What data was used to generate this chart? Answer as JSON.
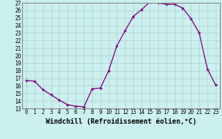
{
  "x": [
    0,
    1,
    2,
    3,
    4,
    5,
    6,
    7,
    8,
    9,
    10,
    11,
    12,
    13,
    14,
    15,
    16,
    17,
    18,
    19,
    20,
    21,
    22,
    23
  ],
  "y": [
    16.7,
    16.6,
    15.5,
    14.8,
    14.1,
    13.5,
    13.3,
    13.2,
    15.6,
    15.7,
    18.0,
    21.3,
    23.3,
    25.2,
    26.1,
    27.1,
    27.0,
    26.8,
    26.8,
    26.3,
    24.9,
    23.0,
    18.2,
    16.1
  ],
  "line_color": "#800080",
  "marker": "+",
  "marker_size": 3,
  "bg_color": "#cbf0f0",
  "grid_color": "#aacccc",
  "xlabel": "Windchill (Refroidissement éolien,°C)",
  "ylabel": "",
  "xlim": [
    -0.5,
    23.5
  ],
  "ylim": [
    13,
    27
  ],
  "yticks": [
    13,
    14,
    15,
    16,
    17,
    18,
    19,
    20,
    21,
    22,
    23,
    24,
    25,
    26,
    27
  ],
  "xticks": [
    0,
    1,
    2,
    3,
    4,
    5,
    6,
    7,
    8,
    9,
    10,
    11,
    12,
    13,
    14,
    15,
    16,
    17,
    18,
    19,
    20,
    21,
    22,
    23
  ],
  "tick_fontsize": 5.5,
  "xlabel_fontsize": 7,
  "line_width": 1.0,
  "border_color": "#808080"
}
